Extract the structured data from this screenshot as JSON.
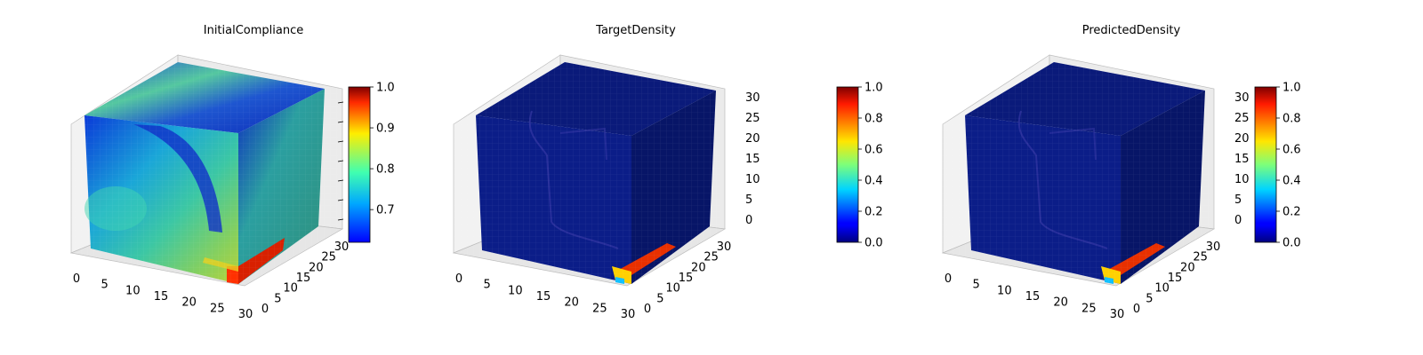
{
  "chart_data": [
    {
      "type": "voxel3d",
      "title": "InitialCompliance",
      "axes": {
        "x": {
          "ticks": [
            "0",
            "5",
            "10",
            "15",
            "20",
            "25",
            "30"
          ],
          "range": [
            0,
            32
          ]
        },
        "y": {
          "ticks": [
            "0",
            "5",
            "10",
            "15",
            "20",
            "25",
            "30"
          ],
          "range": [
            0,
            32
          ]
        },
        "z": {
          "ticks": [],
          "range": [
            0,
            32
          ]
        }
      },
      "colorbar": {
        "colormap": "jet",
        "range": [
          0.62,
          1.0
        ],
        "ticks": [
          "0.7",
          "0.8",
          "0.9",
          "1.0"
        ]
      },
      "grid": true,
      "faces": {
        "top": "green-blue variation",
        "front": "cyan-green with blue regions, red near bottom-right",
        "side": "teal-green"
      }
    },
    {
      "type": "voxel3d",
      "title": "TargetDensity",
      "axes": {
        "x": {
          "ticks": [
            "0",
            "5",
            "10",
            "15",
            "20",
            "25",
            "30"
          ],
          "range": [
            0,
            32
          ]
        },
        "y": {
          "ticks": [
            "0",
            "5",
            "10",
            "15",
            "20",
            "25",
            "30"
          ],
          "range": [
            0,
            32
          ]
        },
        "z": {
          "ticks": [
            "0",
            "5",
            "10",
            "15",
            "20",
            "25",
            "30"
          ],
          "range": [
            0,
            32
          ]
        }
      },
      "colorbar": {
        "colormap": "jet",
        "range": [
          0.0,
          1.0
        ],
        "ticks": [
          "0.0",
          "0.2",
          "0.4",
          "0.6",
          "0.8",
          "1.0"
        ]
      },
      "grid": true,
      "faces": {
        "top": "dark navy",
        "front": "dark navy with faint structure",
        "side": "dark navy, red/orange at bottom edge"
      }
    },
    {
      "type": "voxel3d",
      "title": "PredictedDensity",
      "axes": {
        "x": {
          "ticks": [
            "0",
            "5",
            "10",
            "15",
            "20",
            "25",
            "30"
          ],
          "range": [
            0,
            32
          ]
        },
        "y": {
          "ticks": [
            "0",
            "5",
            "10",
            "15",
            "20",
            "25",
            "30"
          ],
          "range": [
            0,
            32
          ]
        },
        "z": {
          "ticks": [
            "0",
            "5",
            "10",
            "15",
            "20",
            "25",
            "30"
          ],
          "range": [
            0,
            32
          ]
        }
      },
      "colorbar": {
        "colormap": "jet",
        "range": [
          0.0,
          1.0
        ],
        "ticks": [
          "0.0",
          "0.2",
          "0.4",
          "0.6",
          "0.8",
          "1.0"
        ]
      },
      "grid": true,
      "faces": {
        "top": "dark navy",
        "front": "dark navy with faint structure",
        "side": "dark navy, red/orange/cyan at bottom edge"
      }
    }
  ]
}
